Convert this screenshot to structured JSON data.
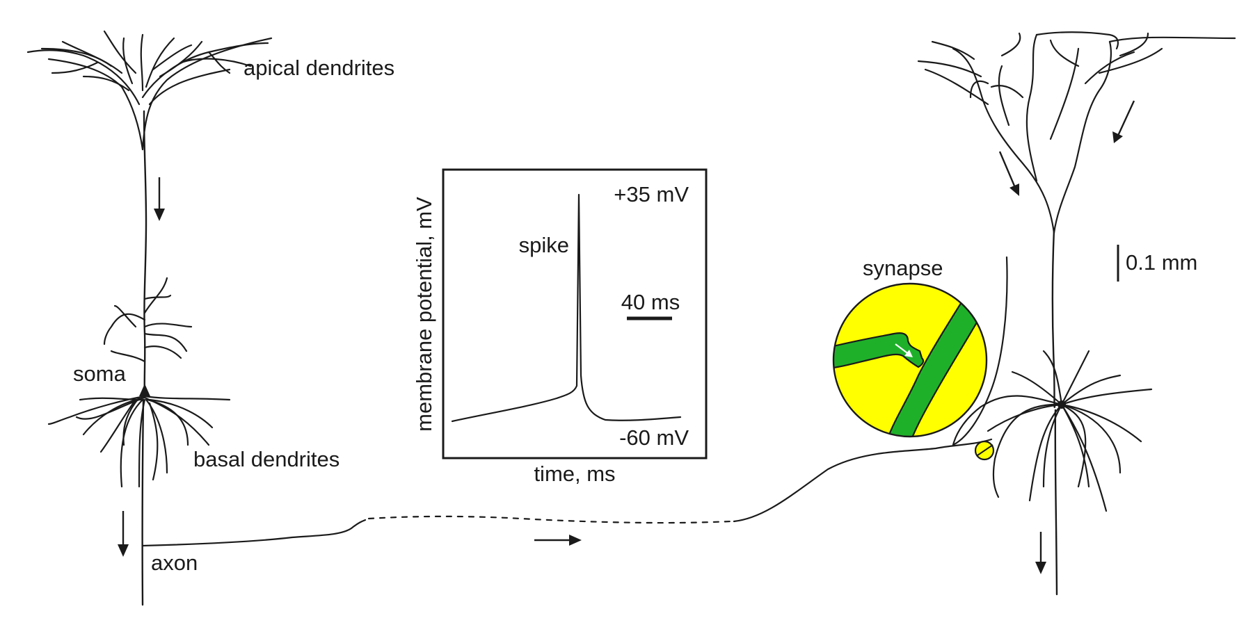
{
  "labels": {
    "apical_dendrites": "apical dendrites",
    "soma": "soma",
    "basal_dendrites": "basal dendrites",
    "axon": "axon",
    "synapse": "synapse",
    "scale_bar": "0.1 mm"
  },
  "inset": {
    "ylabel": "membrane potential, mV",
    "xlabel": "time, ms",
    "spike_label": "spike",
    "top_value": "+35 mV",
    "bottom_value": "-60 mV",
    "time_scale": "40 ms"
  },
  "colors": {
    "line": "#1a1a1a",
    "synapse_fill": "#ffff00",
    "dendrite_green": "#1fb02a"
  }
}
